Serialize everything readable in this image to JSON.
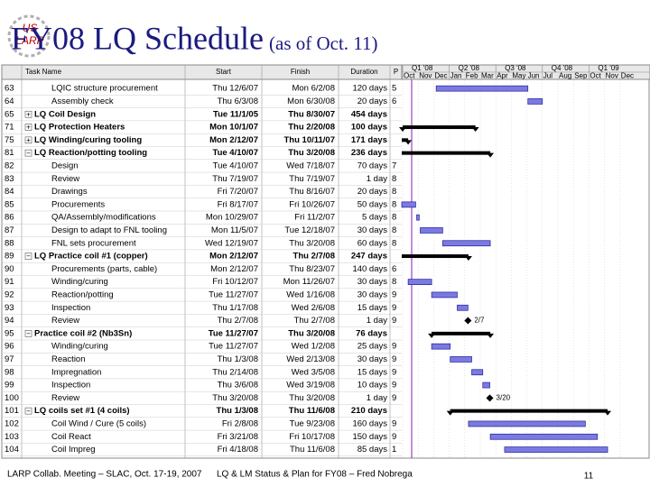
{
  "header": {
    "title": "FY08 LQ Schedule",
    "subtitle": "(as of Oct. 11)",
    "logo": [
      "US",
      "LARP"
    ]
  },
  "table": {
    "columns": [
      "Task Name",
      "Start",
      "Finish",
      "Duration",
      "P"
    ],
    "quarters": [
      "Q1 '08",
      "Q2 '08",
      "Q3 '08",
      "Q4 '08",
      "Q1 '09"
    ],
    "months": [
      "Oct",
      "Nov",
      "Dec",
      "Jan",
      "Feb",
      "Mar",
      "Apr",
      "May",
      "Jun",
      "Jul",
      "Aug",
      "Sep",
      "Oct",
      "Nov",
      "Dec"
    ],
    "rows": [
      {
        "id": "63",
        "name": "LQIC structure procurement",
        "start": "Thu 12/6/07",
        "finish": "Mon 6/2/08",
        "duration": "120 days",
        "pred": "5"
      },
      {
        "id": "64",
        "name": "Assembly check",
        "start": "Thu 6/3/08",
        "finish": "Mon 6/30/08",
        "duration": "20 days",
        "pred": "6"
      },
      {
        "id": "65",
        "outline": "+",
        "name": "LQ Coil Design",
        "start": "Tue 11/1/05",
        "finish": "Thu 8/30/07",
        "duration": "454 days"
      },
      {
        "id": "71",
        "outline": "+",
        "name": "LQ Protection Heaters",
        "start": "Mon 10/1/07",
        "finish": "Thu 2/20/08",
        "duration": "100 days"
      },
      {
        "id": "75",
        "outline": "+",
        "name": "LQ Winding/curing tooling",
        "start": "Mon 2/12/07",
        "finish": "Thu 10/11/07",
        "duration": "171 days"
      },
      {
        "id": "81",
        "outline": "−",
        "name": "LQ Reaction/potting tooling",
        "start": "Tue 4/10/07",
        "finish": "Thu 3/20/08",
        "duration": "236 days"
      },
      {
        "id": "82",
        "name": "Design",
        "start": "Tue 4/10/07",
        "finish": "Wed 7/18/07",
        "duration": "70 days",
        "pred": "7"
      },
      {
        "id": "83",
        "name": "Review",
        "start": "Thu 7/19/07",
        "finish": "Thu 7/19/07",
        "duration": "1 day",
        "pred": "8"
      },
      {
        "id": "84",
        "name": "Drawings",
        "start": "Fri 7/20/07",
        "finish": "Thu 8/16/07",
        "duration": "20 days",
        "pred": "8"
      },
      {
        "id": "85",
        "name": "Procurements",
        "start": "Fri 8/17/07",
        "finish": "Fri 10/26/07",
        "duration": "50 days",
        "pred": "8"
      },
      {
        "id": "86",
        "name": "QA/Assembly/modifications",
        "start": "Mon 10/29/07",
        "finish": "Fri 11/2/07",
        "duration": "5 days",
        "pred": "8"
      },
      {
        "id": "87",
        "name": "Design to adapt to FNL tooling",
        "start": "Mon 11/5/07",
        "finish": "Tue 12/18/07",
        "duration": "30 days",
        "pred": "8"
      },
      {
        "id": "88",
        "name": "FNL sets procurement",
        "start": "Wed 12/19/07",
        "finish": "Thu 3/20/08",
        "duration": "60 days",
        "pred": "8"
      },
      {
        "id": "89",
        "outline": "−",
        "name": "LQ Practice coil #1 (copper)",
        "start": "Mon 2/12/07",
        "finish": "Thu 2/7/08",
        "duration": "247 days"
      },
      {
        "id": "90",
        "name": "Procurements (parts, cable)",
        "start": "Mon 2/12/07",
        "finish": "Thu 8/23/07",
        "duration": "140 days",
        "pred": "6"
      },
      {
        "id": "91",
        "name": "Winding/curing",
        "start": "Fri 10/12/07",
        "finish": "Mon 11/26/07",
        "duration": "30 days",
        "pred": "8"
      },
      {
        "id": "92",
        "name": "Reaction/potting",
        "start": "Tue 11/27/07",
        "finish": "Wed 1/16/08",
        "duration": "30 days",
        "pred": "9"
      },
      {
        "id": "93",
        "name": "Inspection",
        "start": "Thu 1/17/08",
        "finish": "Wed 2/6/08",
        "duration": "15 days",
        "pred": "9"
      },
      {
        "id": "94",
        "name": "Review",
        "start": "Thu 2/7/08",
        "finish": "Thu 2/7/08",
        "duration": "1 day",
        "pred": "9",
        "milestone_label": "2/7"
      },
      {
        "id": "95",
        "outline": "−",
        "name": "Practice coil #2 (Nb3Sn)",
        "start": "Tue 11/27/07",
        "finish": "Thu 3/20/08",
        "duration": "76 days"
      },
      {
        "id": "96",
        "name": "Winding/curing",
        "start": "Tue 11/27/07",
        "finish": "Wed 1/2/08",
        "duration": "25 days",
        "pred": "9"
      },
      {
        "id": "97",
        "name": "Reaction",
        "start": "Thu 1/3/08",
        "finish": "Wed 2/13/08",
        "duration": "30 days",
        "pred": "9"
      },
      {
        "id": "98",
        "name": "Impregnation",
        "start": "Thu 2/14/08",
        "finish": "Wed 3/5/08",
        "duration": "15 days",
        "pred": "9"
      },
      {
        "id": "99",
        "name": "Inspection",
        "start": "Thu 3/6/08",
        "finish": "Wed 3/19/08",
        "duration": "10 days",
        "pred": "9"
      },
      {
        "id": "100",
        "name": "Review",
        "start": "Thu 3/20/08",
        "finish": "Thu 3/20/08",
        "duration": "1 day",
        "pred": "9",
        "milestone_label": "3/20"
      },
      {
        "id": "101",
        "outline": "−",
        "name": "LQ coils set #1 (4 coils)",
        "start": "Thu 1/3/08",
        "finish": "Thu 11/6/08",
        "duration": "210 days"
      },
      {
        "id": "102",
        "name": "Coil Wind / Cure (5 coils)",
        "start": "Fri 2/8/08",
        "finish": "Tue 9/23/08",
        "duration": "160 days",
        "pred": "9"
      },
      {
        "id": "103",
        "name": "Coil React",
        "start": "Fri 3/21/08",
        "finish": "Fri 10/17/08",
        "duration": "150 days",
        "pred": "9"
      },
      {
        "id": "104",
        "name": "Coil Impreg",
        "start": "Fri 4/18/08",
        "finish": "Thu 11/6/08",
        "duration": "85 days",
        "pred": "1"
      }
    ]
  },
  "footer": {
    "left": "LARP Collab. Meeting – SLAC, Oct. 17-19, 2007",
    "center": "LQ & LM Status & Plan for FY08 – Fred Nobrega",
    "page": "11"
  }
}
